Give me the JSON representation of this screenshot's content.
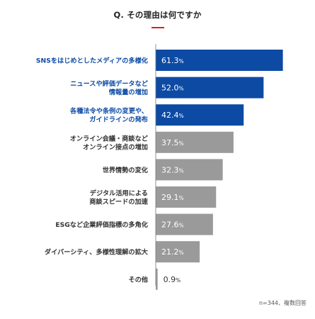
{
  "title": "Q. その理由は何ですか",
  "note": "n=344、複数回答",
  "colors": {
    "highlight": "#0c4aa4",
    "normal": "#9a9a9a",
    "accent_rule": "#d6202a",
    "highlight_label": "#0c4aa4",
    "normal_label": "#333333"
  },
  "chart_data": {
    "type": "bar",
    "orientation": "horizontal",
    "unit": "%",
    "categories": [
      [
        "SNSをはじめとしたメディアの多様化"
      ],
      [
        "ニュースや評価データなど",
        "情報量の増加"
      ],
      [
        "各種法令や条例の変更や、",
        "ガイドラインの発布"
      ],
      [
        "オンライン会議・商談など",
        "オンライン接点の増加"
      ],
      [
        "世界情勢の変化"
      ],
      [
        "デジタル活用による",
        "商談スピードの加速"
      ],
      [
        "ESGなど企業評価指標の多角化"
      ],
      [
        "ダイバーシティ、多様性理解の拡大"
      ],
      [
        "その他"
      ]
    ],
    "values": [
      61.3,
      52.0,
      42.4,
      37.5,
      32.3,
      29.1,
      27.6,
      21.2,
      0.9
    ],
    "value_labels": [
      "61.3",
      "52.0",
      "42.4",
      "37.5",
      "32.3",
      "29.1",
      "27.6",
      "21.2",
      "0.9"
    ],
    "highlighted": [
      true,
      true,
      true,
      false,
      false,
      false,
      false,
      false,
      false
    ],
    "xlim": [
      0,
      70
    ],
    "grid": false
  }
}
